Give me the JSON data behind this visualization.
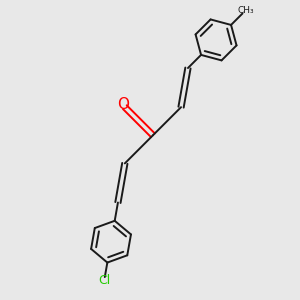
{
  "bg_color": "#e8e8e8",
  "bond_color": "#1a1a1a",
  "oxygen_color": "#ff0000",
  "chlorine_color": "#22cc00",
  "line_width": 1.4,
  "figsize": [
    3.0,
    3.0
  ],
  "dpi": 100,
  "xlim": [
    0,
    10
  ],
  "ylim": [
    0,
    10
  ]
}
